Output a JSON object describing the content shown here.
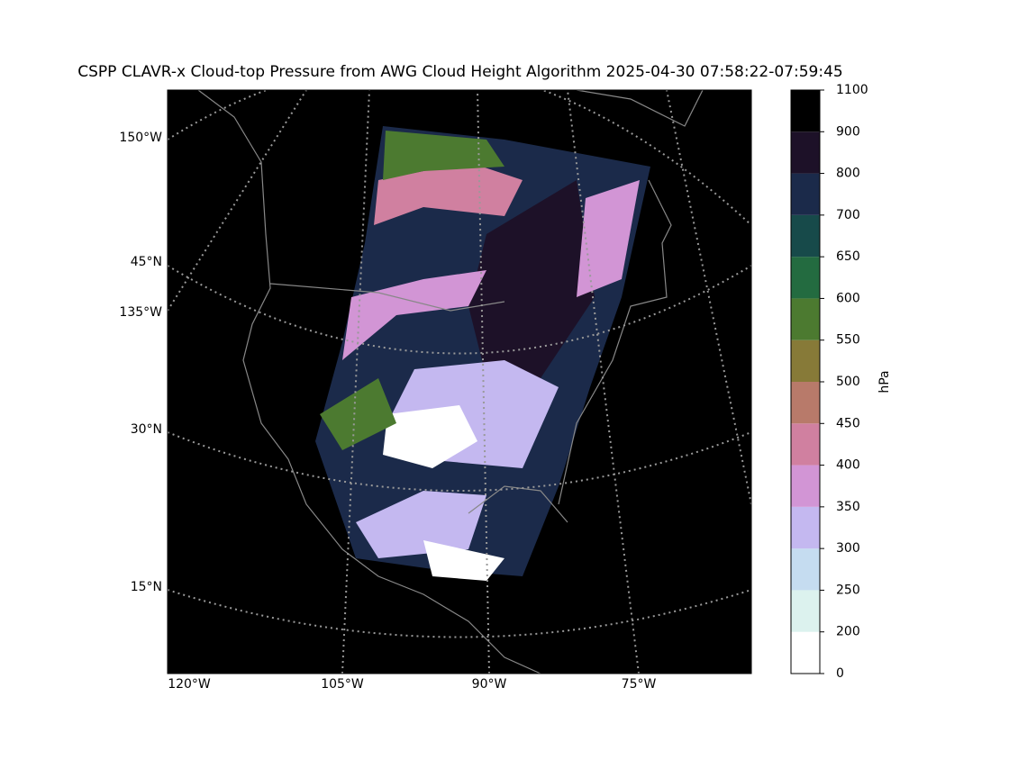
{
  "title": "CSPP CLAVR-x Cloud-top Pressure from AWG Cloud Height Algorithm 2025-04-30 07:58:22-07:59:45",
  "lon_labels": [
    "120°W",
    "105°W",
    "90°W",
    "75°W"
  ],
  "lat_labels": [
    "150°W",
    "45°N",
    "135°W",
    "30°N",
    "15°N"
  ],
  "colorbar": {
    "label": "hPa",
    "ticks": [
      0,
      200,
      250,
      300,
      350,
      400,
      450,
      500,
      550,
      600,
      650,
      700,
      800,
      900,
      1100
    ],
    "colors": [
      "#ffffff",
      "#dcf2ee",
      "#c5dcf0",
      "#c4b8f0",
      "#d295d5",
      "#d080a0",
      "#b87a6a",
      "#877a38",
      "#4c7a30",
      "#236b40",
      "#174a4a",
      "#1b2a4a",
      "#1d1128",
      "#000000"
    ]
  }
}
